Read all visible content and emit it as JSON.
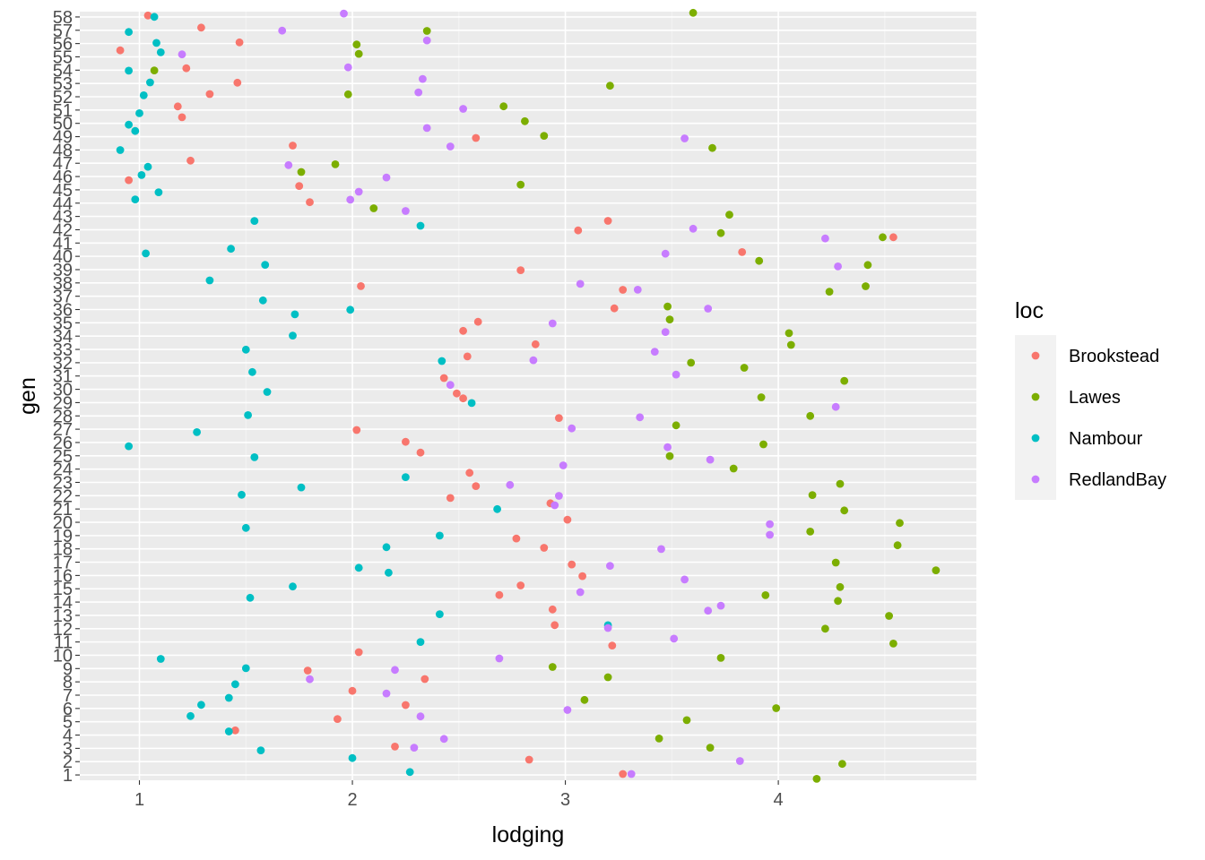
{
  "chart_data": {
    "type": "scatter",
    "title": "",
    "xlabel": "lodging",
    "ylabel": "gen",
    "xlim": [
      0.72,
      4.93
    ],
    "ylim": [
      0.6,
      58.4
    ],
    "x_ticks": [
      1,
      2,
      3,
      4
    ],
    "y_ticks": [
      1,
      2,
      3,
      4,
      5,
      6,
      7,
      8,
      9,
      10,
      11,
      12,
      13,
      14,
      15,
      16,
      17,
      18,
      19,
      20,
      21,
      22,
      23,
      24,
      25,
      26,
      27,
      28,
      29,
      30,
      31,
      32,
      33,
      34,
      35,
      36,
      37,
      38,
      39,
      40,
      41,
      42,
      43,
      44,
      45,
      46,
      47,
      48,
      49,
      50,
      51,
      52,
      53,
      54,
      55,
      56,
      57,
      58
    ],
    "grid": true,
    "legend": {
      "title": "loc",
      "position": "right",
      "entries": [
        {
          "label": "Brookstead",
          "color": "#F8766D"
        },
        {
          "label": "Lawes",
          "color": "#7CAE00"
        },
        {
          "label": "Nambour",
          "color": "#00BFC4"
        },
        {
          "label": "RedlandBay",
          "color": "#C77CFF"
        }
      ]
    },
    "series": [
      {
        "name": "Brookstead",
        "color": "#F8766D",
        "points": [
          [
            3.27,
            1.07
          ],
          [
            2.83,
            2.15
          ],
          [
            2.2,
            3.13
          ],
          [
            1.45,
            4.35
          ],
          [
            1.93,
            5.21
          ],
          [
            2.25,
            6.26
          ],
          [
            2.0,
            7.32
          ],
          [
            2.34,
            8.21
          ],
          [
            1.79,
            8.85
          ],
          [
            2.03,
            10.23
          ],
          [
            3.22,
            10.73
          ],
          [
            2.95,
            12.27
          ],
          [
            2.94,
            13.45
          ],
          [
            2.69,
            14.53
          ],
          [
            2.79,
            15.25
          ],
          [
            3.08,
            15.95
          ],
          [
            3.03,
            16.83
          ],
          [
            2.9,
            18.08
          ],
          [
            2.77,
            18.78
          ],
          [
            3.01,
            20.2
          ],
          [
            2.93,
            21.43
          ],
          [
            2.46,
            21.83
          ],
          [
            2.58,
            22.72
          ],
          [
            2.55,
            23.72
          ],
          [
            2.32,
            25.24
          ],
          [
            2.25,
            26.05
          ],
          [
            2.02,
            26.94
          ],
          [
            2.97,
            27.84
          ],
          [
            2.52,
            29.32
          ],
          [
            2.49,
            29.69
          ],
          [
            2.43,
            30.85
          ],
          [
            2.54,
            32.47
          ],
          [
            2.86,
            33.39
          ],
          [
            2.52,
            34.4
          ],
          [
            2.59,
            35.08
          ],
          [
            3.23,
            36.09
          ],
          [
            3.27,
            37.48
          ],
          [
            2.04,
            37.76
          ],
          [
            2.79,
            38.96
          ],
          [
            3.83,
            40.32
          ],
          [
            4.54,
            41.44
          ],
          [
            3.06,
            41.95
          ],
          [
            3.2,
            42.67
          ],
          [
            1.8,
            44.07
          ],
          [
            1.75,
            45.29
          ],
          [
            0.95,
            45.73
          ],
          [
            1.24,
            47.2
          ],
          [
            1.72,
            48.33
          ],
          [
            2.58,
            48.9
          ],
          [
            1.2,
            50.46
          ],
          [
            1.18,
            51.27
          ],
          [
            1.33,
            52.2
          ],
          [
            1.46,
            53.06
          ],
          [
            1.22,
            54.14
          ],
          [
            0.91,
            55.49
          ],
          [
            1.47,
            56.09
          ],
          [
            1.29,
            57.2
          ],
          [
            1.04,
            58.11
          ]
        ]
      },
      {
        "name": "Lawes",
        "color": "#7CAE00",
        "points": [
          [
            4.18,
            0.71
          ],
          [
            4.3,
            1.83
          ],
          [
            3.68,
            3.05
          ],
          [
            3.44,
            3.74
          ],
          [
            3.57,
            5.12
          ],
          [
            3.99,
            6.02
          ],
          [
            3.09,
            6.64
          ],
          [
            3.2,
            8.35
          ],
          [
            2.94,
            9.12
          ],
          [
            3.73,
            9.8
          ],
          [
            4.54,
            10.88
          ],
          [
            4.22,
            12.0
          ],
          [
            4.52,
            12.96
          ],
          [
            4.28,
            14.09
          ],
          [
            3.94,
            14.52
          ],
          [
            4.29,
            15.13
          ],
          [
            4.74,
            16.39
          ],
          [
            4.27,
            16.97
          ],
          [
            4.56,
            18.27
          ],
          [
            4.15,
            19.3
          ],
          [
            4.57,
            19.95
          ],
          [
            4.31,
            20.89
          ],
          [
            4.16,
            22.05
          ],
          [
            4.29,
            22.89
          ],
          [
            3.79,
            24.04
          ],
          [
            3.49,
            24.98
          ],
          [
            3.93,
            25.86
          ],
          [
            3.52,
            27.29
          ],
          [
            4.15,
            28.0
          ],
          [
            3.92,
            29.4
          ],
          [
            4.31,
            30.64
          ],
          [
            3.84,
            31.62
          ],
          [
            3.59,
            32.0
          ],
          [
            4.06,
            33.34
          ],
          [
            4.05,
            34.22
          ],
          [
            3.49,
            35.25
          ],
          [
            3.48,
            36.23
          ],
          [
            4.24,
            37.34
          ],
          [
            4.41,
            37.75
          ],
          [
            3.91,
            39.66
          ],
          [
            4.42,
            39.35
          ],
          [
            4.49,
            41.44
          ],
          [
            3.73,
            41.75
          ],
          [
            3.77,
            43.13
          ],
          [
            2.1,
            43.61
          ],
          [
            2.79,
            45.39
          ],
          [
            1.76,
            46.34
          ],
          [
            1.92,
            46.92
          ],
          [
            3.69,
            48.15
          ],
          [
            2.9,
            49.06
          ],
          [
            2.81,
            50.16
          ],
          [
            2.71,
            51.28
          ],
          [
            3.21,
            52.83
          ],
          [
            1.98,
            52.18
          ],
          [
            1.07,
            53.98
          ],
          [
            2.03,
            55.23
          ],
          [
            2.02,
            55.93
          ],
          [
            2.35,
            56.95
          ],
          [
            3.6,
            58.31
          ]
        ]
      },
      {
        "name": "Nambour",
        "color": "#00BFC4",
        "points": [
          [
            2.27,
            1.22
          ],
          [
            2.0,
            2.27
          ],
          [
            1.57,
            2.85
          ],
          [
            1.42,
            4.27
          ],
          [
            1.24,
            5.43
          ],
          [
            1.29,
            6.27
          ],
          [
            1.42,
            6.8
          ],
          [
            1.45,
            7.82
          ],
          [
            1.5,
            9.03
          ],
          [
            1.1,
            9.73
          ],
          [
            2.32,
            11.0
          ],
          [
            3.2,
            12.26
          ],
          [
            2.41,
            13.09
          ],
          [
            1.52,
            14.32
          ],
          [
            1.72,
            15.17
          ],
          [
            2.17,
            16.21
          ],
          [
            2.03,
            16.58
          ],
          [
            2.16,
            18.13
          ],
          [
            2.41,
            19.0
          ],
          [
            1.5,
            19.58
          ],
          [
            2.68,
            20.99
          ],
          [
            1.48,
            22.07
          ],
          [
            1.76,
            22.62
          ],
          [
            2.25,
            23.4
          ],
          [
            1.54,
            24.89
          ],
          [
            0.95,
            25.72
          ],
          [
            1.27,
            26.78
          ],
          [
            1.51,
            28.06
          ],
          [
            2.56,
            28.97
          ],
          [
            1.6,
            29.8
          ],
          [
            1.53,
            31.3
          ],
          [
            2.42,
            32.13
          ],
          [
            1.5,
            32.98
          ],
          [
            1.72,
            34.04
          ],
          [
            1.73,
            35.64
          ],
          [
            1.99,
            35.98
          ],
          [
            1.58,
            36.69
          ],
          [
            1.33,
            38.19
          ],
          [
            1.59,
            39.36
          ],
          [
            1.03,
            40.22
          ],
          [
            1.43,
            40.57
          ],
          [
            2.32,
            42.3
          ],
          [
            1.54,
            42.66
          ],
          [
            0.98,
            44.28
          ],
          [
            1.09,
            44.82
          ],
          [
            1.01,
            46.11
          ],
          [
            1.04,
            46.73
          ],
          [
            0.91,
            47.99
          ],
          [
            0.98,
            49.43
          ],
          [
            0.95,
            49.9
          ],
          [
            1.0,
            50.76
          ],
          [
            1.02,
            52.11
          ],
          [
            1.05,
            53.08
          ],
          [
            0.95,
            53.96
          ],
          [
            1.1,
            55.34
          ],
          [
            1.08,
            56.05
          ],
          [
            0.95,
            56.87
          ],
          [
            1.07,
            58.01
          ]
        ]
      },
      {
        "name": "RedlandBay",
        "color": "#C77CFF",
        "points": [
          [
            3.31,
            1.07
          ],
          [
            3.82,
            2.05
          ],
          [
            2.29,
            3.05
          ],
          [
            2.43,
            3.71
          ],
          [
            2.32,
            5.4
          ],
          [
            3.01,
            5.89
          ],
          [
            2.16,
            7.13
          ],
          [
            1.8,
            8.2
          ],
          [
            2.2,
            8.9
          ],
          [
            2.69,
            9.76
          ],
          [
            3.51,
            11.25
          ],
          [
            3.2,
            12.05
          ],
          [
            3.67,
            13.35
          ],
          [
            3.73,
            13.73
          ],
          [
            3.07,
            14.75
          ],
          [
            3.56,
            15.7
          ],
          [
            3.21,
            16.73
          ],
          [
            3.45,
            17.99
          ],
          [
            3.96,
            19.06
          ],
          [
            3.96,
            19.86
          ],
          [
            2.95,
            21.28
          ],
          [
            2.97,
            21.99
          ],
          [
            2.74,
            22.81
          ],
          [
            2.99,
            24.28
          ],
          [
            3.68,
            24.71
          ],
          [
            3.48,
            25.65
          ],
          [
            3.03,
            27.06
          ],
          [
            3.35,
            27.9
          ],
          [
            4.27,
            28.68
          ],
          [
            2.46,
            30.33
          ],
          [
            3.52,
            31.11
          ],
          [
            2.85,
            32.19
          ],
          [
            3.42,
            32.83
          ],
          [
            3.47,
            34.31
          ],
          [
            2.94,
            34.96
          ],
          [
            3.67,
            36.07
          ],
          [
            3.34,
            37.49
          ],
          [
            3.07,
            37.93
          ],
          [
            4.28,
            39.24
          ],
          [
            3.47,
            40.2
          ],
          [
            4.22,
            41.34
          ],
          [
            3.6,
            42.08
          ],
          [
            2.25,
            43.41
          ],
          [
            1.99,
            44.26
          ],
          [
            2.03,
            44.86
          ],
          [
            2.16,
            45.93
          ],
          [
            1.7,
            46.86
          ],
          [
            2.46,
            48.26
          ],
          [
            3.56,
            48.87
          ],
          [
            2.35,
            49.65
          ],
          [
            2.52,
            51.09
          ],
          [
            2.31,
            52.33
          ],
          [
            2.33,
            53.34
          ],
          [
            1.98,
            54.21
          ],
          [
            1.2,
            55.19
          ],
          [
            2.35,
            56.24
          ],
          [
            1.67,
            56.97
          ],
          [
            1.96,
            58.26
          ]
        ]
      }
    ]
  }
}
